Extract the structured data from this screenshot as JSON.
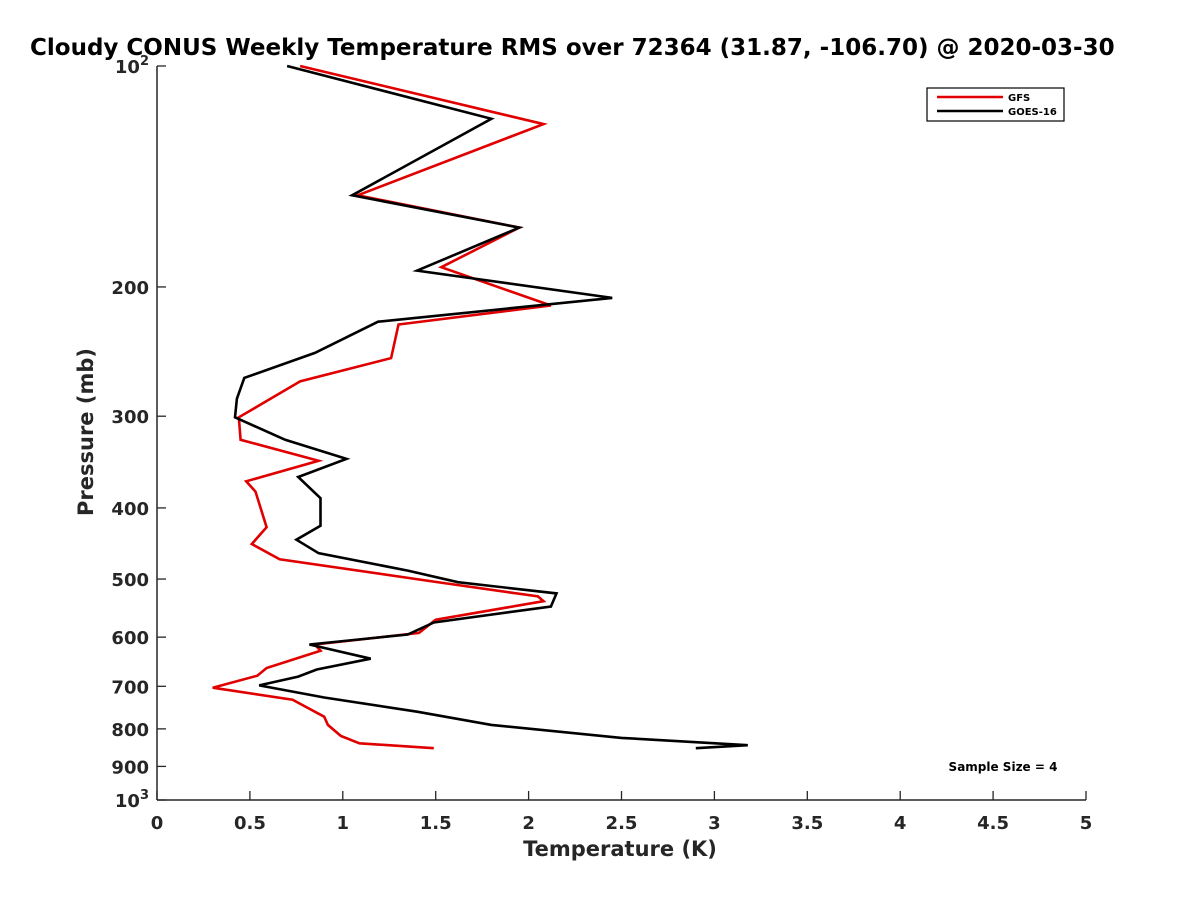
{
  "chart_data": {
    "type": "line",
    "title": "Cloudy CONUS Weekly Temperature RMS over 72364 (31.87, -106.70) @ 2020-03-30",
    "xlabel": "Temperature (K)",
    "ylabel": "Pressure (mb)",
    "xlim": [
      0,
      5
    ],
    "ylim": [
      100,
      1000
    ],
    "yscale": "log",
    "yreversed": true,
    "x_ticks": [
      0,
      0.5,
      1,
      1.5,
      2,
      2.5,
      3,
      3.5,
      4,
      4.5,
      5
    ],
    "x_tick_labels": [
      "0",
      "0.5",
      "1",
      "1.5",
      "2",
      "2.5",
      "3",
      "3.5",
      "4",
      "4.5",
      "5"
    ],
    "y_ticks": [
      {
        "value": 100,
        "base": "10",
        "exp": "2"
      },
      {
        "value": 200,
        "label": "200"
      },
      {
        "value": 300,
        "label": "300"
      },
      {
        "value": 400,
        "label": "400"
      },
      {
        "value": 500,
        "label": "500"
      },
      {
        "value": 600,
        "label": "600"
      },
      {
        "value": 700,
        "label": "700"
      },
      {
        "value": 800,
        "label": "800"
      },
      {
        "value": 900,
        "label": "900"
      },
      {
        "value": 1000,
        "base": "10",
        "exp": "3"
      }
    ],
    "grid": false,
    "legend_position": "top-right",
    "annotation": "Sample Size = 4",
    "series": [
      {
        "name": "GFS",
        "color": "#e00000",
        "points": [
          [
            0.77,
            100
          ],
          [
            2.08,
            120
          ],
          [
            1.08,
            150
          ],
          [
            1.95,
            166
          ],
          [
            1.53,
            188
          ],
          [
            2.12,
            212
          ],
          [
            1.3,
            225
          ],
          [
            1.26,
            250
          ],
          [
            0.77,
            269
          ],
          [
            0.55,
            290
          ],
          [
            0.44,
            301
          ],
          [
            0.45,
            323
          ],
          [
            0.87,
            345
          ],
          [
            0.48,
            368
          ],
          [
            0.53,
            380
          ],
          [
            0.59,
            425
          ],
          [
            0.51,
            448
          ],
          [
            0.66,
            470
          ],
          [
            1.49,
            504
          ],
          [
            2.05,
            528
          ],
          [
            2.08,
            536
          ],
          [
            1.5,
            568
          ],
          [
            1.41,
            592
          ],
          [
            0.85,
            614
          ],
          [
            0.88,
            626
          ],
          [
            0.59,
            661
          ],
          [
            0.54,
            677
          ],
          [
            0.3,
            703
          ],
          [
            0.73,
            730
          ],
          [
            0.9,
            770
          ],
          [
            0.92,
            790
          ],
          [
            0.99,
            818
          ],
          [
            1.09,
            837
          ],
          [
            1.49,
            850
          ]
        ]
      },
      {
        "name": "GOES-16",
        "color": "#000000",
        "points": [
          [
            0.7,
            100
          ],
          [
            1.8,
            118
          ],
          [
            1.05,
            150
          ],
          [
            1.95,
            166
          ],
          [
            1.4,
            190
          ],
          [
            2.45,
            207
          ],
          [
            1.19,
            223
          ],
          [
            0.85,
            246
          ],
          [
            0.47,
            266
          ],
          [
            0.43,
            284
          ],
          [
            0.42,
            301
          ],
          [
            0.69,
            323
          ],
          [
            1.02,
            343
          ],
          [
            0.76,
            363
          ],
          [
            0.88,
            388
          ],
          [
            0.88,
            423
          ],
          [
            0.75,
            442
          ],
          [
            0.87,
            461
          ],
          [
            1.35,
            487
          ],
          [
            1.62,
            505
          ],
          [
            2.15,
            523
          ],
          [
            2.12,
            545
          ],
          [
            1.49,
            573
          ],
          [
            1.35,
            595
          ],
          [
            0.82,
            614
          ],
          [
            1.15,
            642
          ],
          [
            0.86,
            664
          ],
          [
            0.76,
            679
          ],
          [
            0.55,
            698
          ],
          [
            0.9,
            725
          ],
          [
            1.4,
            758
          ],
          [
            1.8,
            790
          ],
          [
            2.5,
            823
          ],
          [
            3.18,
            842
          ],
          [
            2.9,
            850
          ]
        ]
      }
    ]
  }
}
